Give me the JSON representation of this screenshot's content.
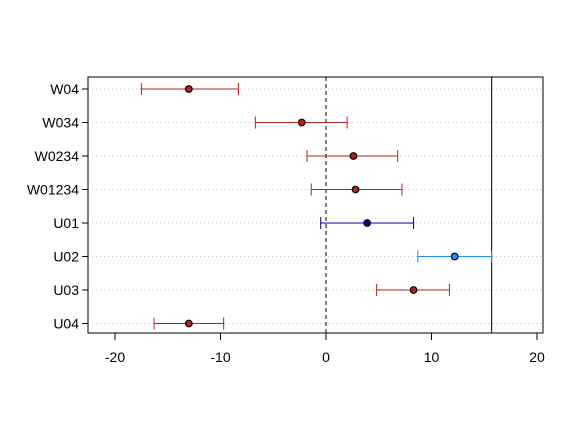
{
  "chart_data": {
    "type": "scatter",
    "title": "",
    "xlabel": "",
    "ylabel": "",
    "xlim": [
      -22,
      21
    ],
    "x_ticks": [
      -20,
      -10,
      0,
      10,
      20
    ],
    "x_tick_labels": [
      "-20",
      "-10",
      "0",
      "10",
      "20"
    ],
    "grid": "horizontal dotted",
    "zero_reference_line": 0,
    "vertical_reference_line": 15.7,
    "categories": [
      "W04",
      "W034",
      "W0234",
      "W01234",
      "U01",
      "U02",
      "U03",
      "U04"
    ],
    "estimates": [
      {
        "label": "W04",
        "estimate": -13.0,
        "lower": -17.5,
        "upper": -8.3,
        "color": "#b22222"
      },
      {
        "label": "W034",
        "estimate": -2.3,
        "lower": -6.7,
        "upper": 2.0,
        "color": "#b22222"
      },
      {
        "label": "W0234",
        "estimate": 2.6,
        "lower": -1.8,
        "upper": 6.8,
        "color": "#b22222"
      },
      {
        "label": "W01234",
        "estimate": 2.8,
        "lower": -1.4,
        "upper": 7.2,
        "color": "#b22222"
      },
      {
        "label": "U01",
        "estimate": 3.9,
        "lower": -0.5,
        "upper": 8.3,
        "color": "#00008b"
      },
      {
        "label": "U02",
        "estimate": 12.2,
        "lower": 8.7,
        "upper": 15.7,
        "color": "#1e90ff"
      },
      {
        "label": "U03",
        "estimate": 8.3,
        "lower": 4.8,
        "upper": 11.7,
        "color": "#b22222"
      },
      {
        "label": "U04",
        "estimate": -13.0,
        "lower": -16.3,
        "upper": -9.7,
        "color": "#b22222"
      }
    ]
  }
}
